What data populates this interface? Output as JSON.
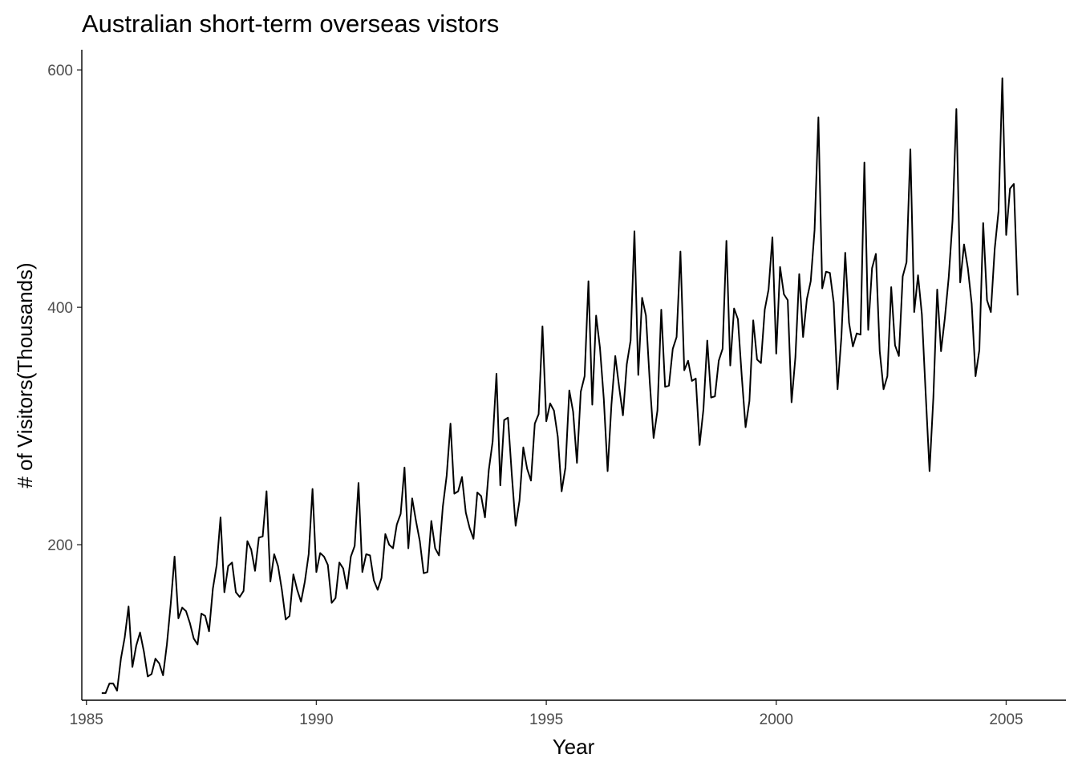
{
  "chart_data": {
    "type": "line",
    "title": "Australian short-term overseas vistors",
    "xlabel": "Year",
    "ylabel": "# of Visitors(Thousands)",
    "xlim": [
      1984.9,
      2006.3
    ],
    "ylim": [
      69,
      617
    ],
    "xticks": [
      1985,
      1990,
      1995,
      2000,
      2005
    ],
    "yticks": [
      200,
      400,
      600
    ],
    "grid": false,
    "legend": "none",
    "line_color": "#000000",
    "frequency": "monthly",
    "start": "1985-05",
    "series": [
      {
        "values": [
          75,
          75,
          83,
          83,
          77,
          104,
          122,
          148,
          97,
          115,
          126,
          110,
          89,
          91,
          104,
          100,
          90,
          116,
          150,
          190,
          138,
          147,
          144,
          134,
          121,
          116,
          142,
          140,
          127,
          163,
          183,
          223,
          160,
          182,
          185,
          160,
          156,
          161,
          203,
          196,
          178,
          206,
          207,
          245,
          169,
          192,
          182,
          162,
          137,
          140,
          175,
          162,
          152,
          169,
          192,
          247,
          177,
          193,
          190,
          183,
          151,
          155,
          185,
          180,
          163,
          190,
          199,
          252,
          177,
          192,
          191,
          170,
          162,
          172,
          209,
          200,
          197,
          217,
          226,
          265,
          197,
          239,
          220,
          203,
          176,
          177,
          220,
          197,
          191,
          232,
          258,
          302,
          243,
          245,
          257,
          227,
          214,
          205,
          244,
          241,
          223,
          263,
          287,
          344,
          250,
          305,
          307,
          259,
          216,
          237,
          282,
          264,
          254,
          302,
          310,
          384,
          304,
          319,
          313,
          291,
          245,
          265,
          330,
          312,
          269,
          329,
          342,
          422,
          318,
          393,
          366,
          323,
          262,
          318,
          359,
          333,
          309,
          352,
          372,
          464,
          343,
          408,
          393,
          337,
          290,
          313,
          398,
          333,
          334,
          365,
          375,
          447,
          347,
          355,
          338,
          340,
          284,
          314,
          372,
          324,
          325,
          355,
          365,
          456,
          351,
          399,
          390,
          342,
          299,
          321,
          389,
          356,
          353,
          398,
          415,
          459,
          361,
          434,
          411,
          406,
          320,
          358,
          428,
          375,
          407,
          422,
          465,
          560,
          416,
          430,
          429,
          404,
          331,
          375,
          446,
          387,
          367,
          378,
          377,
          522,
          381,
          433,
          445,
          363,
          331,
          342,
          417,
          368,
          359,
          426,
          438,
          533,
          396,
          427,
          394,
          327,
          262,
          324,
          415,
          363,
          391,
          425,
          473,
          567,
          421,
          453,
          433,
          403,
          342,
          364,
          471,
          406,
          396,
          449,
          481,
          593,
          461,
          500,
          504,
          410
        ]
      }
    ]
  }
}
